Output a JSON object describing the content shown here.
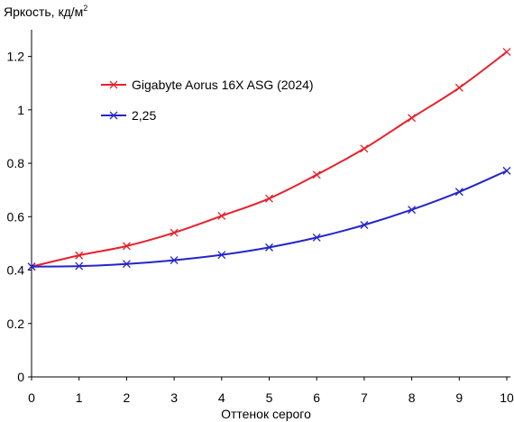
{
  "chart_data": {
    "type": "line",
    "title": "",
    "ylabel": "Яркость, кд/м",
    "ylabel_sup": "2",
    "xlabel": "Оттенок серого",
    "xlim": [
      0,
      10
    ],
    "ylim": [
      0,
      1.3
    ],
    "x_ticks": [
      0,
      1,
      2,
      3,
      4,
      5,
      6,
      7,
      8,
      9,
      10
    ],
    "y_ticks": [
      0,
      0.2,
      0.4,
      0.6,
      0.8,
      1,
      1.2
    ],
    "y_tick_labels": [
      "0",
      "0.2",
      "0.4",
      "0.6",
      "0.8",
      "1",
      "1.2"
    ],
    "grid": false,
    "legend_position": "top-left",
    "x": [
      0,
      1,
      2,
      3,
      4,
      5,
      6,
      7,
      8,
      9,
      10
    ],
    "series": [
      {
        "name": "Gigabyte Aorus 16X ASG (2024)",
        "color": "#e8202a",
        "marker": "x",
        "values": [
          0.413,
          0.455,
          0.49,
          0.54,
          0.603,
          0.668,
          0.757,
          0.855,
          0.97,
          1.083,
          1.217
        ]
      },
      {
        "name": "2,25",
        "color": "#2424cc",
        "marker": "x",
        "values": [
          0.413,
          0.415,
          0.423,
          0.437,
          0.457,
          0.485,
          0.522,
          0.569,
          0.626,
          0.693,
          0.772
        ]
      }
    ]
  }
}
